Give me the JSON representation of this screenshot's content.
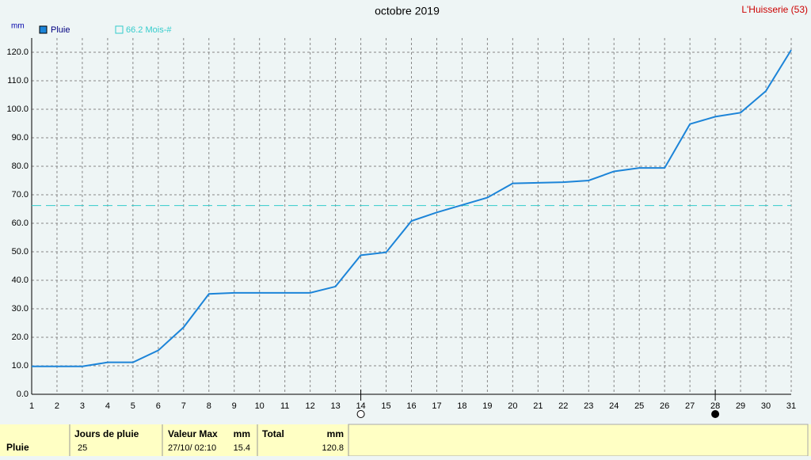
{
  "chart_data": {
    "type": "line",
    "title": "octobre 2019",
    "station": "L'Huisserie (53)",
    "y_unit": "mm",
    "x": [
      1,
      2,
      3,
      4,
      5,
      6,
      7,
      8,
      9,
      10,
      11,
      12,
      13,
      14,
      15,
      16,
      17,
      18,
      19,
      20,
      21,
      22,
      23,
      24,
      25,
      26,
      27,
      28,
      29,
      30,
      31
    ],
    "series": [
      {
        "name": "Pluie",
        "color": "#1c84d8",
        "values": [
          9.8,
          9.8,
          9.8,
          11.2,
          11.2,
          15.4,
          23.5,
          35.2,
          35.6,
          35.6,
          35.6,
          35.6,
          37.8,
          48.8,
          49.8,
          60.8,
          63.8,
          66.4,
          69.0,
          74.0,
          74.2,
          74.4,
          75.0,
          78.2,
          79.4,
          79.4,
          94.8,
          97.4,
          98.8,
          106.4,
          120.8
        ]
      }
    ],
    "reference": {
      "value": 66.2,
      "label": "66.2 Mois-#",
      "color": "#33cccc"
    },
    "xlim": [
      1,
      31
    ],
    "ylim": [
      0,
      120
    ],
    "xticks": [
      1,
      2,
      3,
      4,
      5,
      6,
      7,
      8,
      9,
      10,
      11,
      12,
      13,
      14,
      15,
      16,
      17,
      18,
      19,
      20,
      21,
      22,
      23,
      24,
      25,
      26,
      27,
      28,
      29,
      30,
      31
    ],
    "yticks": [
      {
        "value": 0,
        "label": "0.0"
      },
      {
        "value": 10,
        "label": "10.0"
      },
      {
        "value": 20,
        "label": "20.0"
      },
      {
        "value": 30,
        "label": "30.0"
      },
      {
        "value": 40,
        "label": "40.0"
      },
      {
        "value": 50,
        "label": "50.0"
      },
      {
        "value": 60,
        "label": "60.0"
      },
      {
        "value": 70,
        "label": "70.0"
      },
      {
        "value": 80,
        "label": "80.0"
      },
      {
        "value": 90,
        "label": "90.0"
      },
      {
        "value": 100,
        "label": "100.0"
      },
      {
        "value": 110,
        "label": "110.0"
      },
      {
        "value": 120,
        "label": "120.0"
      }
    ],
    "grid": true,
    "full_moon": 14,
    "new_moon": 28
  },
  "table": {
    "headers": [
      "Jours de pluie",
      "Valeur Max",
      "mm",
      "Total",
      "mm"
    ],
    "row": [
      "Pluie",
      "25",
      "27/10/ 02:10",
      "15.4",
      "120.8"
    ]
  }
}
